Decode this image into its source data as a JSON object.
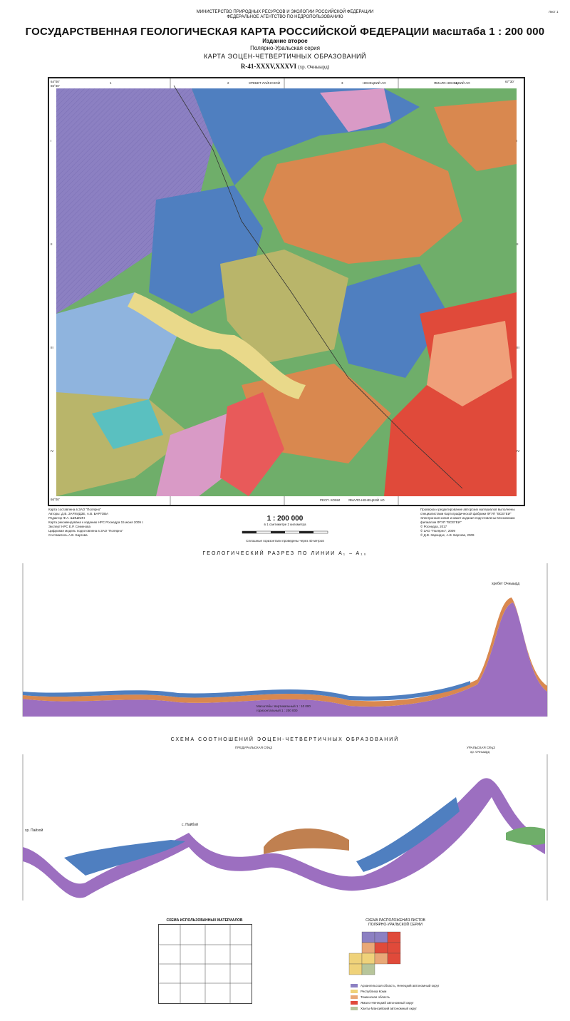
{
  "header": {
    "ministry": "МИНИСТЕРСТВО ПРИРОДНЫХ РЕСУРСОВ И ЭКОЛОГИИ РОССИЙСКОЙ ФЕДЕРАЦИИ",
    "agency": "ФЕДЕРАЛЬНОЕ АГЕНТСТВО ПО НЕДРОПОЛЬЗОВАНИЮ",
    "sheet_label": "Лист 1",
    "title": "ГОСУДАРСТВЕННАЯ ГЕОЛОГИЧЕСКАЯ КАРТА РОССИЙСКОЙ ФЕДЕРАЦИИ масштаба 1 : 200 000",
    "edition": "Издание второе",
    "series": "Полярно-Уральская серия",
    "map_name": "КАРТА ЭОЦЕН-ЧЕТВЕРТИЧНЫХ ОБРАЗОВАНИЙ",
    "sheet_code": "R-41-XXXV,XXXVI",
    "sheet_sub": "(хр. Очныырд)"
  },
  "map": {
    "top_labels": [
      "ХРЕБЕТ ЛАЙНСКОЙ",
      "НЕНЕЦКИЙ АО",
      "ЯМАЛО-НЕНЕЦКИЙ АО"
    ],
    "bottom_labels": [
      "РЕСП. КОМИ",
      "ЯМАЛО-НЕНЕЦКИЙ АО"
    ],
    "column_numbers": [
      "1",
      "2",
      "3",
      "4"
    ],
    "row_numerals": [
      "I",
      "II",
      "III",
      "IV"
    ],
    "corner_coords": [
      "64°00'",
      "66°40'",
      "67°30'",
      "66°00'"
    ],
    "colors": {
      "blue": "#4f7fc0",
      "light_blue": "#8fb4de",
      "green": "#6fae6a",
      "olive": "#b9b56a",
      "orange": "#d9884f",
      "pink": "#d99ac6",
      "purple": "#8c80c2",
      "red": "#e04a3a",
      "yellow": "#e9d98a",
      "cyan": "#5ac0c0"
    }
  },
  "map_footer": {
    "left_lines": [
      "Карта составлена в ЗАО \"Полярно\"",
      "Авторы: Д.В. ЗАРХИДЗЕ, А.В. БАРГОВА",
      "Редактор Ф.А. ШИШКИН",
      "Карта рекомендована к изданию НРС Роснедра 15 июня 2009 г.",
      "Эксперт НРС Е.Р. Семенова",
      "Цифровая модель подготовлена в ЗАО \"Полярно\"",
      "Составитель А.В. Баргова"
    ],
    "scale": "1 : 200 000",
    "scale_note": "в 1 сантиметре 2 километра",
    "contour_note": "Сплошные горизонтали проведены через 40 метров",
    "right_lines": [
      "Проверка и редактирование авторских материалов выполнены",
      "специалистами Картографической фабрики ФГУП \"ВСЕГЕИ\"",
      "Электронная копия и макет издания подготовлены Московским",
      "филиалом ФГУП \"ВСЕГЕИ\"",
      "© Роснедра, 2017",
      "© ЗАО \"Полярно\", 2009",
      "© Д.В. Зархидзе, А.В. Баргова, 2009"
    ]
  },
  "section": {
    "title": "ГЕОЛОГИЧЕСКИЙ РАЗРЕЗ ПО ЛИНИИ A₁ – A₁₀",
    "peak_label": "хребет Очныырд",
    "scale_label_1": "Масштабы: вертикальный 1 : 10 000",
    "scale_label_2": "горизонтальный 1 : 200 000"
  },
  "scheme": {
    "title": "СХЕМА СООТНОШЕНИЙ ЭОЦЕН-ЧЕТВЕРТИЧНЫХ ОБРАЗОВАНИЙ",
    "left_zone": "ПРЕДУРАЛЬСКАЯ СФцЗ",
    "right_zone": "УРАЛЬСКАЯ СФцЗ",
    "right_sub": "хр. Очныырд",
    "left_place": "хр. Пайхой",
    "mid_place": "с. Пайбой"
  },
  "materials": {
    "title": "СХЕМА ИСПОЛЬЗОВАННЫХ МАТЕРИАЛОВ"
  },
  "location": {
    "title": "СХЕМА РАСПОЛОЖЕНИЯ ЛИСТОВ",
    "subtitle": "ПОЛЯРНО-УРАЛЬСКОЙ СЕРИИ",
    "legend": [
      {
        "color": "#8c80c2",
        "label": "Архангельская область, Ненецкий автономный округ"
      },
      {
        "color": "#efd27a",
        "label": "Республика Коми"
      },
      {
        "color": "#e9a877",
        "label": "Тюменская область"
      },
      {
        "color": "#e04a3a",
        "label": "Ямало-Ненецкий автономный округ"
      },
      {
        "color": "#b7c59a",
        "label": "Ханты-Мансийский автономный округ"
      }
    ]
  }
}
